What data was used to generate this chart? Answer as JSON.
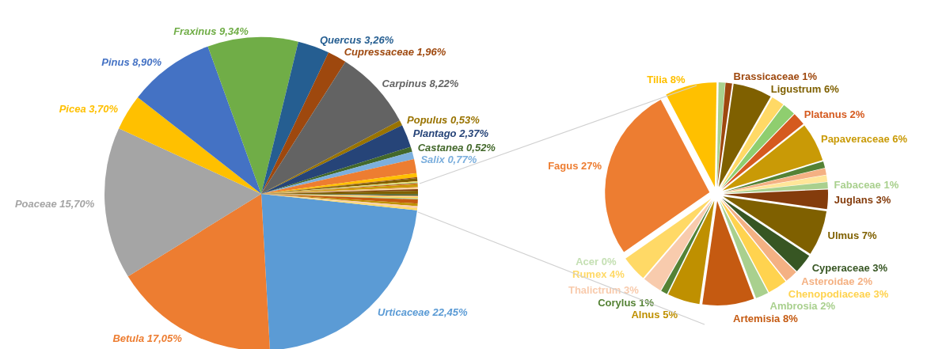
{
  "chart_data": [
    {
      "type": "pie",
      "categories": [
        "Urticaceae",
        "Betula",
        "Poaceae",
        "Picea",
        "Pinus",
        "Fraxinus",
        "Quercus",
        "Cupressaceae",
        "Carpinus",
        "Populus",
        "Plantago",
        "Castanea",
        "Salix",
        null,
        null,
        null,
        null,
        null,
        null,
        null,
        null,
        null,
        null,
        null,
        null,
        null,
        null,
        null,
        null,
        null,
        null,
        null,
        null
      ],
      "values": [
        22.45,
        17.05,
        15.7,
        3.7,
        8.9,
        9.34,
        3.26,
        1.96,
        8.22,
        0.53,
        2.37,
        0.52,
        0.77,
        1.44,
        0.42,
        0.1,
        0.31,
        0.1,
        0.1,
        0.1,
        0.31,
        0.1,
        0.1,
        0.16,
        0.37,
        0.16,
        0.1,
        0.16,
        0.1,
        0.42,
        0.26,
        0.21,
        0.21
      ],
      "value_labels": [
        "22,45%",
        "17,05%",
        "15,70%",
        "3,70%",
        "8,90%",
        "9,34%",
        "3,26%",
        "1,96%",
        "8,22%",
        "0,53%",
        "2,37%",
        "0,52%",
        "0,77%",
        null,
        null,
        null,
        null,
        null,
        null,
        null,
        null,
        null,
        null,
        null,
        null,
        null,
        null,
        null,
        null,
        null,
        null,
        null,
        null
      ],
      "colors": [
        "#5b9bd5",
        "#ed7d31",
        "#a5a5a5",
        "#ffc000",
        "#4472c4",
        "#70ad47",
        "#255e91",
        "#9e480e",
        "#636363",
        "#997300",
        "#264478",
        "#43682b",
        "#7cafdd",
        "#ed7d31",
        "#ffc000",
        "#9e480e",
        "#7f6000",
        "#ffd966",
        "#8fce6f",
        "#d55a1f",
        "#c99a06",
        "#f4b183",
        "#ffe699",
        "#843c0c",
        "#7f6000",
        "#375623",
        "#f4b183",
        "#ffd34f",
        "#a9d08e",
        "#c55a11",
        "#bf9000",
        "#f8cbad",
        "#ffd966"
      ]
    },
    {
      "type": "pie",
      "categories": [
        "Fagus",
        "Tilia",
        null,
        "Brassicaceae",
        "Ligustrum",
        null,
        null,
        "Platanus",
        "Papaveraceae",
        null,
        null,
        null,
        "Fabaceae",
        "Juglans",
        "Ulmus",
        "Cyperaceae",
        "Asteroidae",
        "Chenopodiaceae",
        "Ambrosia",
        "Artemisia",
        "Alnus",
        "Corylus",
        "Thalictrum",
        "Rumex",
        "Acer"
      ],
      "values": [
        27,
        8,
        1,
        1,
        6,
        2,
        2,
        2,
        6,
        1,
        1,
        1,
        1,
        3,
        7,
        3,
        2,
        3,
        2,
        8,
        5,
        1,
        3,
        4,
        0
      ],
      "value_labels": [
        "27%",
        "8%",
        null,
        "1%",
        "6%",
        null,
        null,
        "2%",
        "6%",
        null,
        null,
        null,
        "1%",
        "3%",
        "7%",
        "3%",
        "2%",
        "3%",
        "2%",
        "8%",
        "5%",
        "1%",
        "3%",
        "4%",
        "0%"
      ],
      "colors": [
        "#ed7d31",
        "#ffc000",
        "#a9d18e",
        "#9e480e",
        "#7f6000",
        "#ffd966",
        "#8fce6f",
        "#d55a1f",
        "#c99a06",
        "#548235",
        "#f4b183",
        "#ffe699",
        "#a9d08e",
        "#843c0c",
        "#7f6000",
        "#375623",
        "#f4b183",
        "#ffd34f",
        "#a9d08e",
        "#c55a11",
        "#bf9000",
        "#548235",
        "#f8cbad",
        "#ffd966",
        "#c5e0b4"
      ]
    }
  ]
}
